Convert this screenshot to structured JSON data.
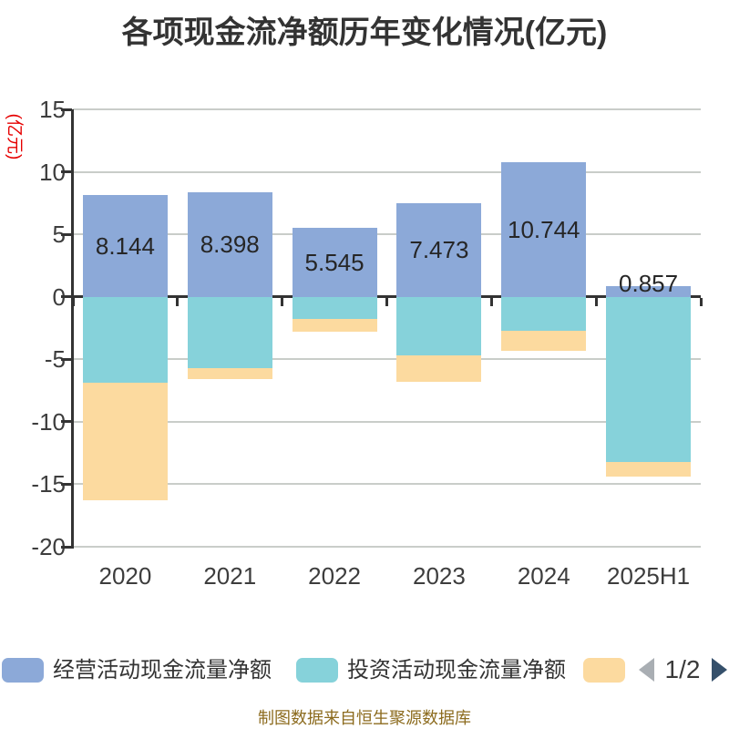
{
  "title": "各项现金流净额历年变化情况(亿元)",
  "y_axis": {
    "unit_label": "(亿元)",
    "tick_values": [
      15,
      10,
      5,
      0,
      -5,
      -10,
      -15,
      -20
    ],
    "max": 15,
    "min": -20
  },
  "x_axis": {
    "categories": [
      "2020",
      "2021",
      "2022",
      "2023",
      "2024",
      "2025H1"
    ]
  },
  "chart_data": {
    "type": "bar",
    "stacked": true,
    "title": "各项现金流净额历年变化情况(亿元)",
    "categories": [
      "2020",
      "2021",
      "2022",
      "2023",
      "2024",
      "2025H1"
    ],
    "ylim": [
      -20,
      15
    ],
    "grid": true,
    "legend_position": "bottom",
    "series": [
      {
        "name": "经营活动现金流量净额",
        "color": "#8CA9D8",
        "values": [
          8.144,
          8.398,
          5.545,
          7.473,
          10.744,
          0.857
        ]
      },
      {
        "name": "投资活动现金流量净额",
        "color": "#86D2DA",
        "values": [
          -6.9,
          -5.7,
          -1.8,
          -4.7,
          -2.7,
          -13.2
        ]
      },
      {
        "name": "",
        "color": "#FCDA9F",
        "values": [
          -9.4,
          -0.9,
          -1.0,
          -2.1,
          -1.6,
          -1.2
        ],
        "legend_label_visible": false
      }
    ],
    "bar_value_labels": [
      "8.144",
      "8.398",
      "5.545",
      "7.473",
      "10.744",
      "0.857"
    ]
  },
  "legend": {
    "items": [
      {
        "label": "经营活动现金流量净额",
        "color": "#8CA9D8"
      },
      {
        "label": "投资活动现金流量净额",
        "color": "#86D2DA"
      },
      {
        "label": "",
        "color": "#FCDA9F"
      }
    ],
    "pager": {
      "text": "1/2"
    }
  },
  "footer": {
    "text": "制图数据来自恒生聚源数据库"
  },
  "colors": {
    "grid": "#C9CDC9",
    "axis": "#333333",
    "axis_label": "#3D3D3D",
    "value_label": "#262626",
    "unit_label": "#E60000",
    "footer_text": "#8C6B1E",
    "pager_prev": "#A9AEB3",
    "pager_next": "#35506B",
    "title_text": "#333333"
  }
}
